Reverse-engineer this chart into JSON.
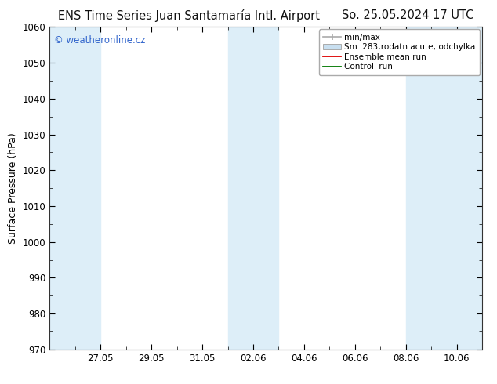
{
  "title_left": "ENS Time Series Juan Santamaría Intl. Airport",
  "title_right": "So. 25.05.2024 17 UTC",
  "ylabel": "Surface Pressure (hPa)",
  "ylim": [
    970,
    1060
  ],
  "yticks": [
    970,
    980,
    990,
    1000,
    1010,
    1020,
    1030,
    1040,
    1050,
    1060
  ],
  "xtick_labels": [
    "27.05",
    "29.05",
    "31.05",
    "02.06",
    "04.06",
    "06.06",
    "08.06",
    "10.06"
  ],
  "xtick_positions": [
    2,
    4,
    6,
    8,
    10,
    12,
    14,
    16
  ],
  "xlim": [
    0,
    17
  ],
  "shaded_bands": [
    {
      "start": 0,
      "end": 2
    },
    {
      "start": 7,
      "end": 9
    },
    {
      "start": 14,
      "end": 17
    }
  ],
  "band_color": "#ddeef8",
  "background_color": "#ffffff",
  "plot_bg_color": "#ffffff",
  "watermark": "© weatheronline.cz",
  "watermark_color": "#3366cc",
  "title_fontsize": 10.5,
  "axis_label_fontsize": 9,
  "tick_fontsize": 8.5,
  "legend_fontsize": 7.5,
  "spine_color": "#333333"
}
